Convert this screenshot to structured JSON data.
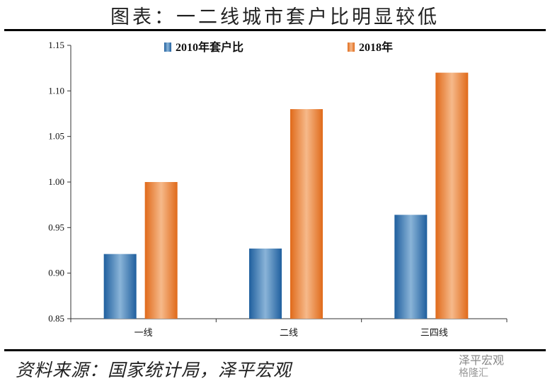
{
  "header": {
    "title": "图表：一二线城市套户比明显较低"
  },
  "footer": {
    "source": "资料来源：国家统计局，泽平宏观"
  },
  "watermark": {
    "line1": "泽平宏观",
    "line2": "格隆汇"
  },
  "colors": {
    "blue": "#2e75b6",
    "orange": "#ed7d31"
  },
  "chart_data": {
    "type": "bar",
    "categories": [
      "一线",
      "二线",
      "三四线"
    ],
    "series": [
      {
        "name": "2010年套户比",
        "values": [
          0.921,
          0.927,
          0.964
        ],
        "color": "#2e75b6"
      },
      {
        "name": "2018年",
        "values": [
          1.0,
          1.08,
          1.12
        ],
        "color": "#ed7d31"
      }
    ],
    "ylim": [
      0.85,
      1.15
    ],
    "yticks": [
      "0.85",
      "0.90",
      "0.95",
      "1.00",
      "1.05",
      "1.10",
      "1.15"
    ],
    "legend": "top",
    "grid": false
  }
}
